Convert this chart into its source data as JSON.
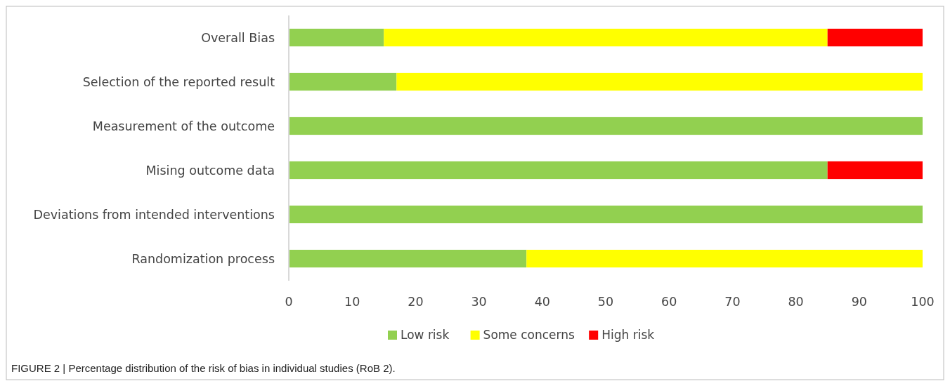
{
  "chart_data": {
    "type": "bar",
    "orientation": "horizontal",
    "stacked": true,
    "categories": [
      "Overall Bias",
      "Selection of the reported result",
      "Measurement of the outcome",
      "Mising outcome data",
      "Deviations from intended interventions",
      "Randomization process"
    ],
    "series": [
      {
        "name": "Low risk",
        "color": "#92d050",
        "values": [
          15,
          17,
          100,
          85,
          100,
          37.5
        ]
      },
      {
        "name": "Some concerns",
        "color": "#ffff00",
        "values": [
          70,
          83,
          0,
          0,
          0,
          62.5
        ]
      },
      {
        "name": "High risk",
        "color": "#ff0000",
        "values": [
          15,
          0,
          0,
          15,
          0,
          0
        ]
      }
    ],
    "xlim": [
      0,
      100
    ],
    "xticks": [
      0,
      10,
      20,
      30,
      40,
      50,
      60,
      70,
      80,
      90,
      100
    ],
    "grid": false,
    "legend": "bottom",
    "annotations": [
      "FIGURE 2 | Percentage distribution of the risk of bias in individual studies (RoB 2)."
    ]
  }
}
